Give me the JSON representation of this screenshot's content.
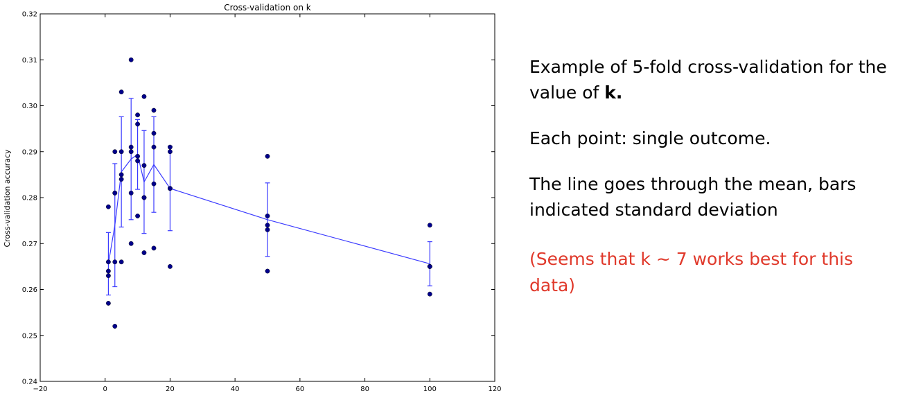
{
  "chart_data": {
    "type": "scatter",
    "title": "Cross-validation on k",
    "xlabel": "k",
    "ylabel": "Cross-validation accuracy",
    "xlim": [
      -20,
      120
    ],
    "ylim": [
      0.24,
      0.32
    ],
    "xticks": [
      -20,
      0,
      20,
      40,
      60,
      80,
      100,
      120
    ],
    "yticks": [
      0.24,
      0.25,
      0.26,
      0.27,
      0.28,
      0.29,
      0.3,
      0.31,
      0.32
    ],
    "tick_labels_x": [
      "−20",
      "0",
      "20",
      "40",
      "60",
      "80",
      "100",
      "120"
    ],
    "tick_labels_y": [
      "0.24",
      "0.25",
      "0.26",
      "0.27",
      "0.28",
      "0.29",
      "0.30",
      "0.31",
      "0.32"
    ],
    "grid": false,
    "points": [
      {
        "k": 1,
        "accuracy": [
          0.278,
          0.266,
          0.264,
          0.263,
          0.257
        ]
      },
      {
        "k": 3,
        "accuracy": [
          0.29,
          0.281,
          0.281,
          0.266,
          0.252
        ]
      },
      {
        "k": 5,
        "accuracy": [
          0.303,
          0.29,
          0.285,
          0.284,
          0.266
        ]
      },
      {
        "k": 8,
        "accuracy": [
          0.31,
          0.291,
          0.29,
          0.281,
          0.27
        ]
      },
      {
        "k": 10,
        "accuracy": [
          0.298,
          0.296,
          0.289,
          0.288,
          0.276
        ]
      },
      {
        "k": 12,
        "accuracy": [
          0.302,
          0.287,
          0.28,
          0.28,
          0.268
        ]
      },
      {
        "k": 15,
        "accuracy": [
          0.299,
          0.294,
          0.291,
          0.283,
          0.269
        ]
      },
      {
        "k": 20,
        "accuracy": [
          0.291,
          0.29,
          0.282,
          0.282,
          0.265
        ]
      },
      {
        "k": 50,
        "accuracy": [
          0.289,
          0.276,
          0.274,
          0.273,
          0.264
        ]
      },
      {
        "k": 100,
        "accuracy": [
          0.274,
          0.265,
          0.265,
          0.265,
          0.259
        ]
      }
    ],
    "mean_line": {
      "x": [
        1,
        3,
        5,
        8,
        10,
        12,
        15,
        20,
        50,
        100
      ],
      "y": [
        0.2656,
        0.274,
        0.2856,
        0.2884,
        0.2894,
        0.2834,
        0.2872,
        0.282,
        0.2752,
        0.2656
      ],
      "std": [
        0.0068,
        0.0134,
        0.012,
        0.0132,
        0.0076,
        0.0112,
        0.0104,
        0.0092,
        0.008,
        0.0048
      ]
    },
    "colors": {
      "points": "#00008b",
      "line": "#3a3aff",
      "axes": "#000000"
    }
  },
  "caption": {
    "line1_prefix": "Example of 5-fold cross-validation for the value of ",
    "line1_bold": "k.",
    "line2": "Each point: single outcome.",
    "line3": "The line goes through the mean, bars indicated standard deviation",
    "note": "(Seems that k ~ 7 works best for this data)"
  }
}
